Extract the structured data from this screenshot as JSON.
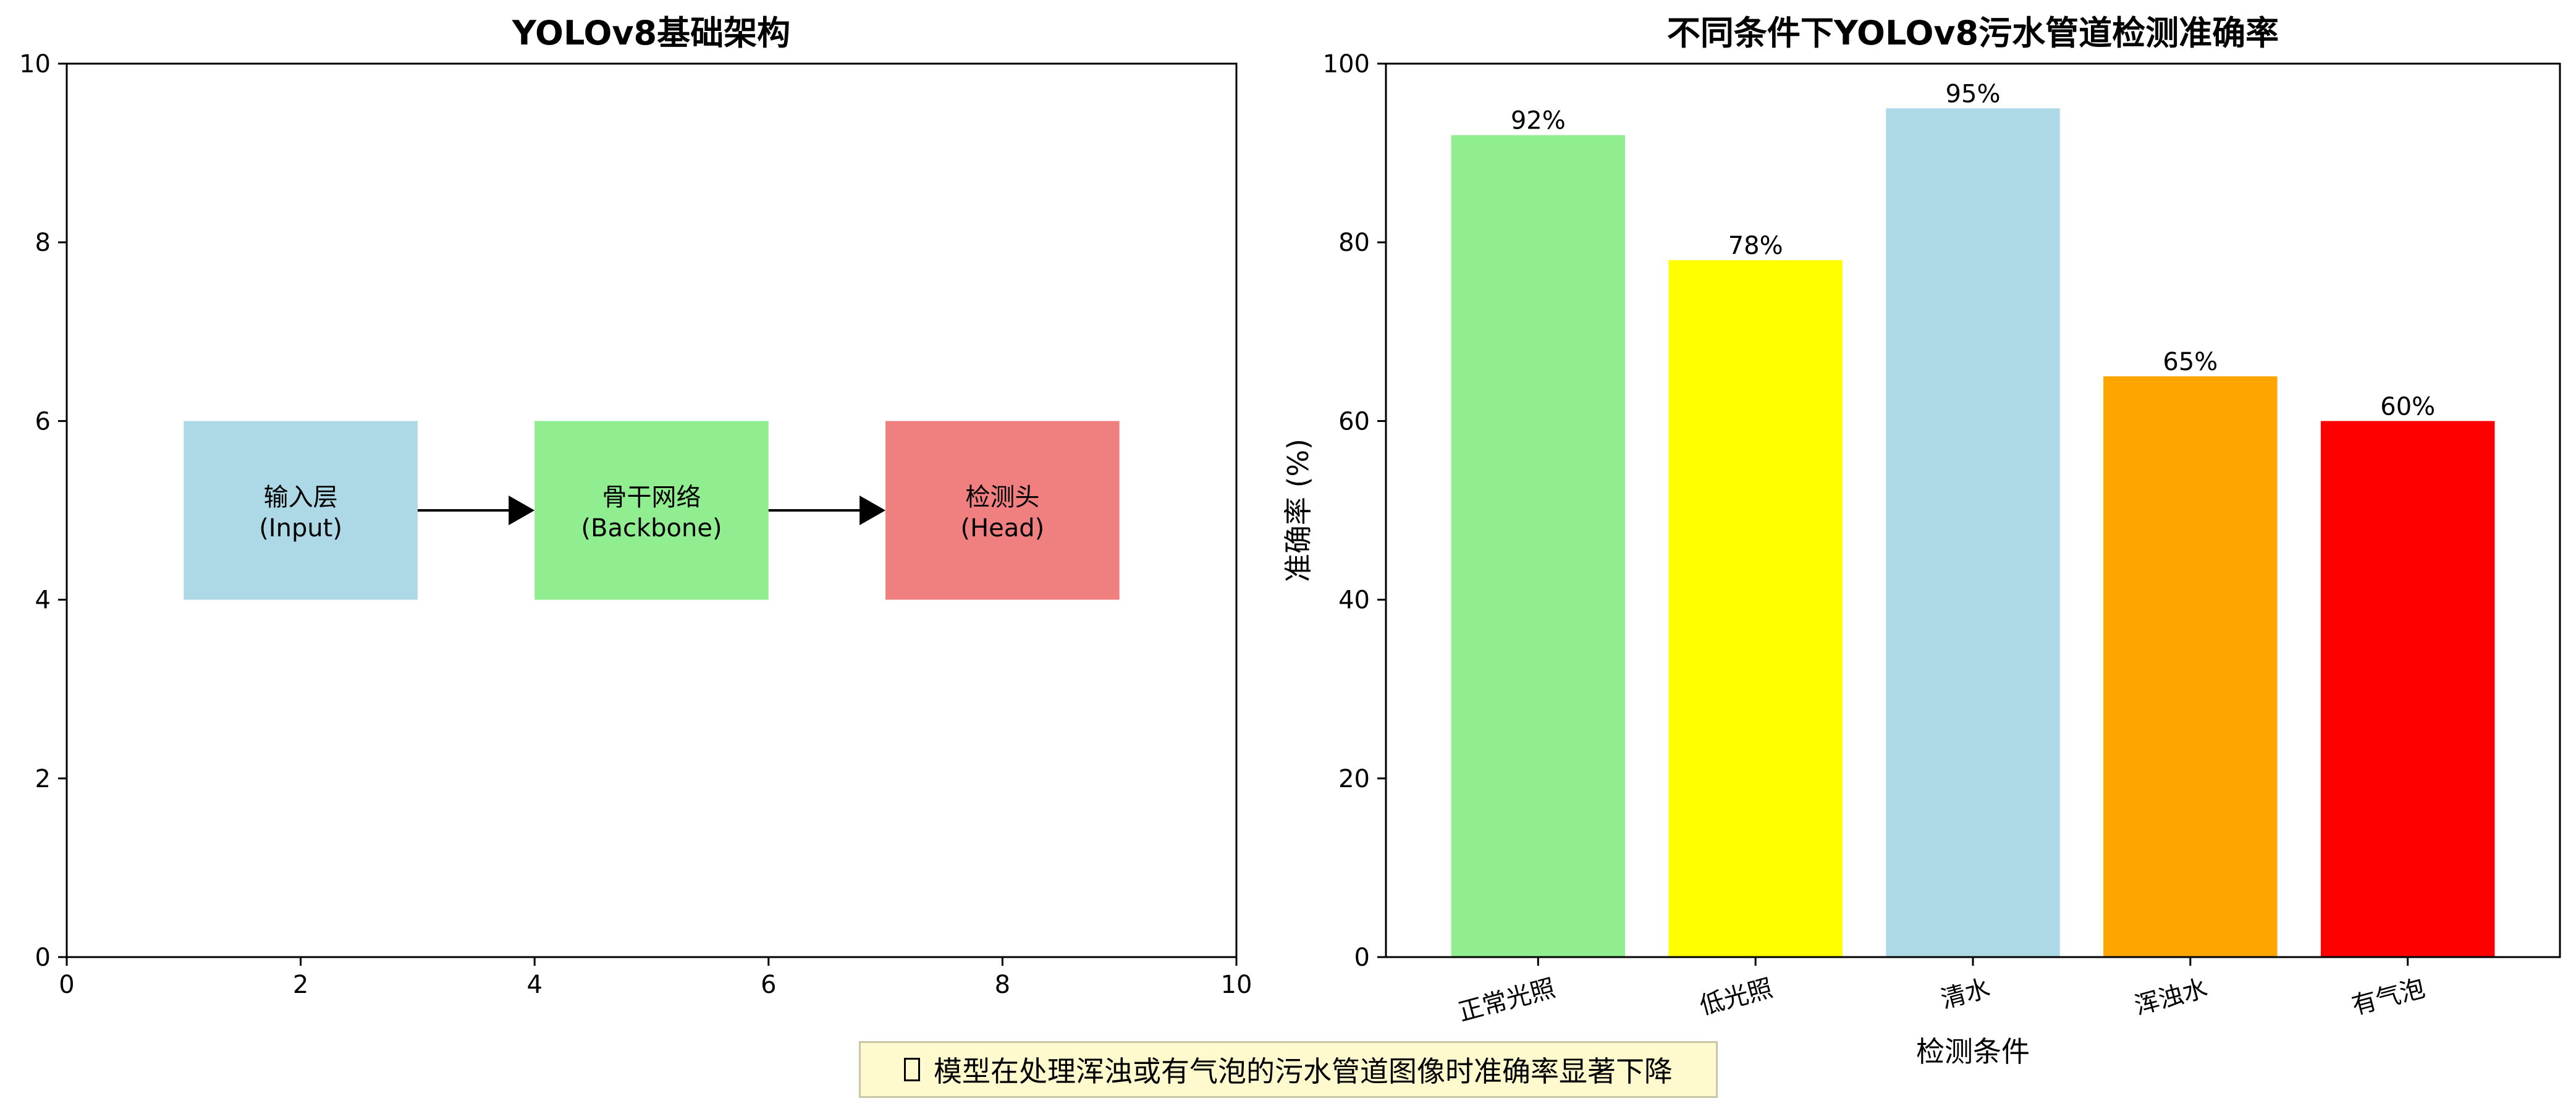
{
  "left_panel": {
    "title": "YOLOv8基础架构",
    "x_ticks": [
      "0",
      "2",
      "4",
      "6",
      "8",
      "10"
    ],
    "y_ticks": [
      "0",
      "2",
      "4",
      "6",
      "8",
      "10"
    ],
    "xlim": [
      0,
      10
    ],
    "ylim": [
      0,
      10
    ],
    "blocks": [
      {
        "line1": "输入层",
        "line2": "(Input)",
        "color": "#add8e6",
        "x0": 1,
        "x1": 3,
        "y0": 4,
        "y1": 6
      },
      {
        "line1": "骨干网络",
        "line2": "(Backbone)",
        "color": "#90ee90",
        "x0": 4,
        "x1": 6,
        "y0": 4,
        "y1": 6
      },
      {
        "line1": "检测头",
        "line2": "(Head)",
        "color": "#f08080",
        "x0": 7,
        "x1": 9,
        "y0": 4,
        "y1": 6
      }
    ],
    "arrows": [
      {
        "from": 3,
        "to": 4,
        "y": 5
      },
      {
        "from": 6,
        "to": 7,
        "y": 5
      }
    ]
  },
  "chart_data": {
    "type": "bar",
    "title": "不同条件下YOLOv8污水管道检测准确率",
    "xlabel": "检测条件",
    "ylabel": "准确率 (%)",
    "ylim": [
      0,
      100
    ],
    "y_ticks": [
      "0",
      "20",
      "40",
      "60",
      "80",
      "100"
    ],
    "categories": [
      "正常光照",
      "低光照",
      "清水",
      "浑浊水",
      "有气泡"
    ],
    "values": [
      92,
      78,
      95,
      65,
      60
    ],
    "data_labels": [
      "92%",
      "78%",
      "95%",
      "65%",
      "60%"
    ],
    "colors": [
      "#90ee90",
      "#ffff00",
      "#add8e6",
      "#ffa500",
      "#ff0000"
    ],
    "grid": false
  },
  "note": {
    "icon": "warning-icon",
    "text": "模型在处理浑浊或有气泡的污水管道图像时准确率显著下降"
  }
}
